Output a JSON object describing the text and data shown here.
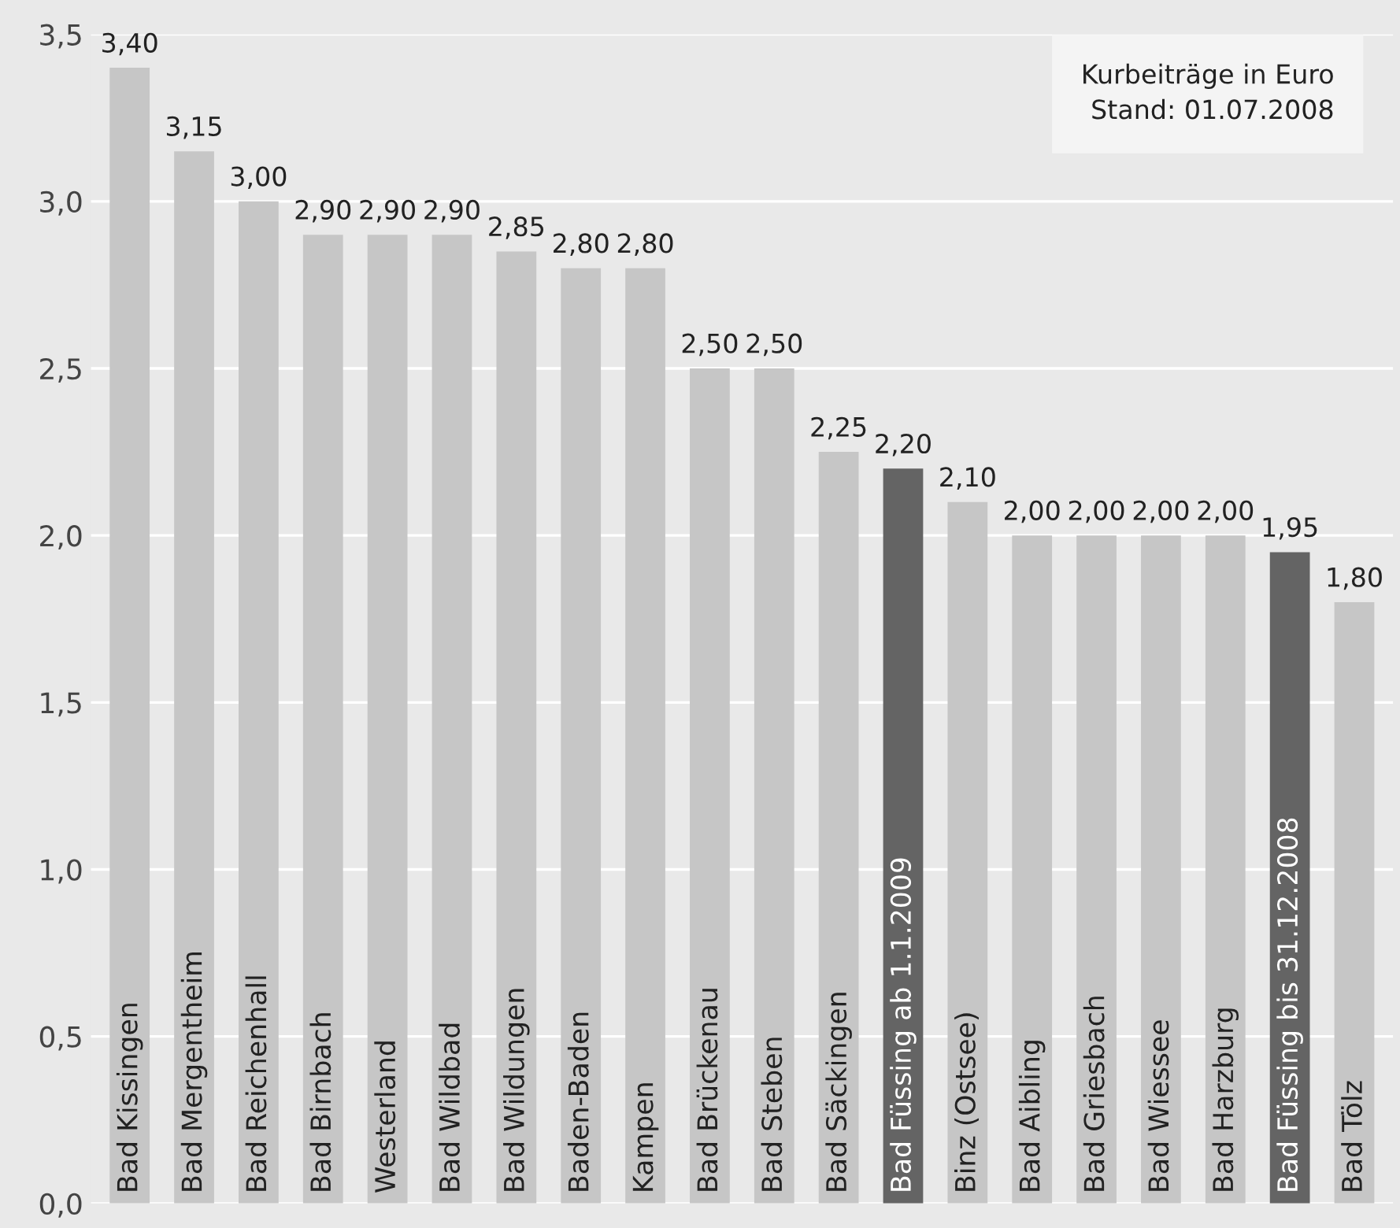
{
  "chart_data": {
    "type": "bar",
    "categories": [
      "Bad Kissingen",
      "Bad Mergentheim",
      "Bad Reichenhall",
      "Bad Birnbach",
      "Westerland",
      "Bad Wildbad",
      "Bad Wildungen",
      "Baden-Baden",
      "Kampen",
      "Bad Brückenau",
      "Bad Steben",
      "Bad Säckingen",
      "Bad Füssing ab 1.1.2009",
      "Binz (Ostsee)",
      "Bad Aibling",
      "Bad Griesbach",
      "Bad Wiessee",
      "Bad Harzburg",
      "Bad Füssing bis 31.12.2008",
      "Bad Tölz"
    ],
    "values": [
      3.4,
      3.15,
      3.0,
      2.9,
      2.9,
      2.9,
      2.85,
      2.8,
      2.8,
      2.5,
      2.5,
      2.25,
      2.2,
      2.1,
      2.0,
      2.0,
      2.0,
      2.0,
      1.95,
      1.8
    ],
    "value_labels": [
      "3,40",
      "3,15",
      "3,00",
      "2,90",
      "2,90",
      "2,90",
      "2,85",
      "2,80",
      "2,80",
      "2,50",
      "2,50",
      "2,25",
      "2,20",
      "2,10",
      "2,00",
      "2,00",
      "2,00",
      "2,00",
      "1,95",
      "1,80"
    ],
    "colors": [
      "#c6c6c6",
      "#c6c6c6",
      "#c6c6c6",
      "#c6c6c6",
      "#c6c6c6",
      "#c6c6c6",
      "#c6c6c6",
      "#c6c6c6",
      "#c6c6c6",
      "#c6c6c6",
      "#c6c6c6",
      "#c6c6c6",
      "#646464",
      "#c6c6c6",
      "#c6c6c6",
      "#c6c6c6",
      "#c6c6c6",
      "#c6c6c6",
      "#646464",
      "#c6c6c6"
    ],
    "ylim": [
      0,
      3.5
    ],
    "yticks": [
      {
        "value": 0,
        "label": "0,0"
      },
      {
        "value": 0.5,
        "label": "0,5"
      },
      {
        "value": 1,
        "label": "1,0"
      },
      {
        "value": 1.5,
        "label": "1,5"
      },
      {
        "value": 2,
        "label": "2,0"
      },
      {
        "value": 2.5,
        "label": "2,5"
      },
      {
        "value": 3,
        "label": "3,0"
      },
      {
        "value": 3.5,
        "label": "3,5"
      }
    ],
    "grid": "y",
    "annotations": [
      "Kurbeiträge in Euro\nStand: 01.07.2008"
    ]
  }
}
